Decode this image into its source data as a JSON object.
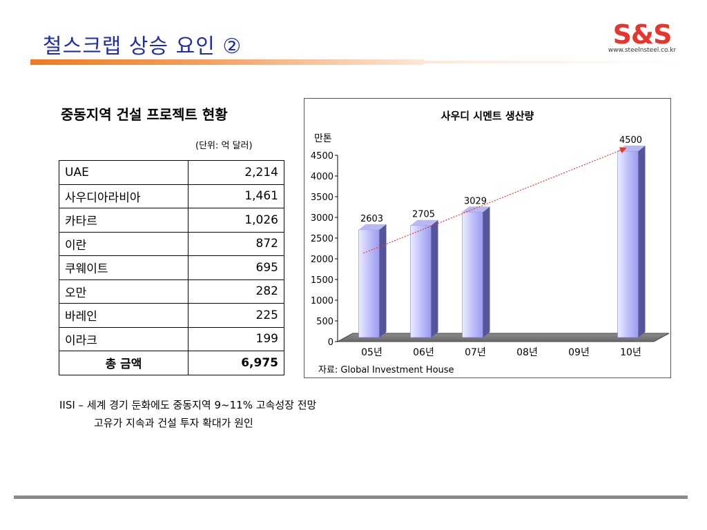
{
  "header": {
    "title": "철스크랩 상승 요인 ②",
    "logo_text": "S&S",
    "logo_url": "www.steelnsteel.co.kr"
  },
  "table": {
    "title": "중동지역 건설 프로젝트 현황",
    "unit": "(단위: 억 달러)",
    "rows": [
      {
        "name": "UAE",
        "value": "2,214"
      },
      {
        "name": "사우디아라비아",
        "value": "1,461"
      },
      {
        "name": "카타르",
        "value": "1,026"
      },
      {
        "name": "이란",
        "value": "872"
      },
      {
        "name": "쿠웨이트",
        "value": "695"
      },
      {
        "name": "오만",
        "value": "282"
      },
      {
        "name": "바레인",
        "value": "225"
      },
      {
        "name": "이라크",
        "value": "199"
      }
    ],
    "total": {
      "name": "총 금액",
      "value": "6,975"
    }
  },
  "chart_data": {
    "type": "bar",
    "title": "사우디 시멘트 생산량",
    "ylabel": "만톤",
    "categories": [
      "05년",
      "06년",
      "07년",
      "08년",
      "09년",
      "10년"
    ],
    "values": [
      2603,
      2705,
      3029,
      null,
      null,
      4500
    ],
    "data_labels": [
      "2603",
      "2705",
      "3029",
      "",
      "",
      "4500"
    ],
    "yticks": [
      "0",
      "500",
      "1000",
      "1500",
      "2000",
      "2500",
      "3000",
      "3500",
      "4000",
      "4500"
    ],
    "ylim": [
      0,
      4500
    ],
    "source": "자료: Global Investment House",
    "trend_arrow": "05년 → 10년",
    "colors": {
      "bar": "#9b9bf0",
      "trend": "#e8352b"
    }
  },
  "notes": {
    "line1": "IISI – 세계 경기 둔화에도 중동지역 9~11% 고속성장 전망",
    "line2": "고유가 지속과 건설 투자 확대가 원인"
  }
}
